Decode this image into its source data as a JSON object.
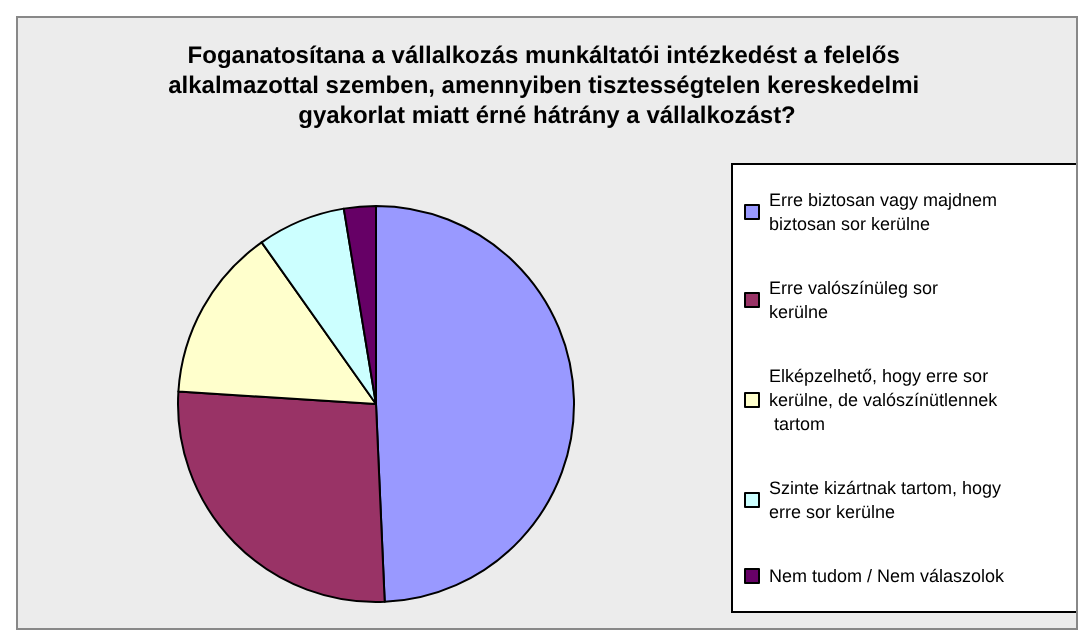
{
  "chart_data": {
    "type": "pie",
    "title": "Foganatosítana a vállalkozás munkáltatói intézkedést a felelős alkalmazottal szemben, amennyiben tisztességtelen kereskedelmi gyakorlat miatt érné hátrány a vállalkozást?",
    "categories": [
      "Erre biztosan vagy majdnem biztosan sor kerülne",
      "Erre valószínüleg sor kerülne",
      "Elképzelhető, hogy erre sor kerülne, de valószínütlennek tartom",
      "Szinte kizártnak tartom, hogy erre sor kerülne",
      "Nem tudom / Nem válaszolok"
    ],
    "values": [
      49.3,
      26.7,
      14.2,
      7.2,
      2.6
    ],
    "colors": [
      "#9999ff",
      "#993366",
      "#ffffcc",
      "#ccffff",
      "#660066"
    ],
    "legend": "right"
  }
}
